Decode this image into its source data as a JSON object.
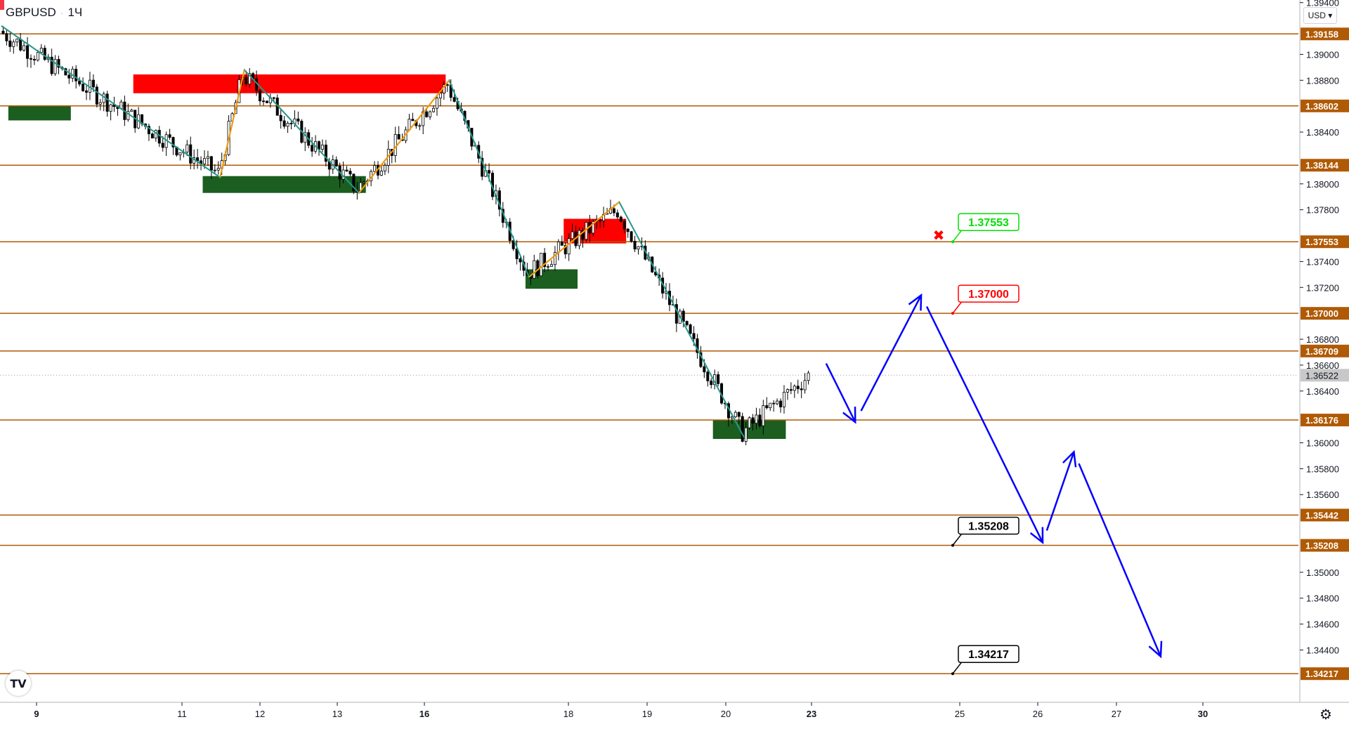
{
  "header": {
    "symbol": "GBPUSD",
    "interval": "1Ч",
    "separator": "·"
  },
  "price_scale": {
    "currency_button": "USD ▾"
  },
  "logo": {
    "text": "TV"
  },
  "icons": {
    "settings": "gear-icon",
    "target_missed": "cross-icon"
  },
  "colors": {
    "level_line": "#b05a05",
    "bull_candle": "#ffffff",
    "bear_candle": "#000000",
    "supply_zone": "#ff0000",
    "demand_zone": "#1b5e20",
    "zigzag_teal": "#26968c",
    "zigzag_orange": "#ff9800",
    "forecast": "#0000ff",
    "current_price_tag": "#c8c8c8"
  },
  "chart_data": {
    "type": "candlestick",
    "symbol": "GBPUSD",
    "timeframe": "1H",
    "x_ticks": [
      "9",
      "11",
      "12",
      "13",
      "16",
      "18",
      "19",
      "20",
      "23",
      "25",
      "26",
      "27",
      "30"
    ],
    "y_ticks": [
      "1.39400",
      "1.39000",
      "1.38800",
      "1.38400",
      "1.38000",
      "1.37800",
      "1.37400",
      "1.37200",
      "1.36800",
      "1.36600",
      "1.36400",
      "1.36000",
      "1.35800",
      "1.35600",
      "1.35000",
      "1.34800",
      "1.34600",
      "1.34400"
    ],
    "y_range": [
      1.3405,
      1.3942
    ],
    "current_price": 1.36522,
    "levels": [
      1.39158,
      1.38602,
      1.38144,
      1.37553,
      1.37,
      1.36709,
      1.36176,
      1.35442,
      1.35208,
      1.34217
    ],
    "level_labels": [
      "1.39158",
      "1.38602",
      "1.38144",
      "1.37553",
      "1.37000",
      "1.36709",
      "1.36176",
      "1.35442",
      "1.35208",
      "1.34217"
    ],
    "current_price_label": "1.36522",
    "targets": [
      {
        "label": "1.37553",
        "status": "missed",
        "color": "#00e000"
      },
      {
        "label": "1.37000",
        "status": "active",
        "color": "#ff0000"
      },
      {
        "label": "1.35208",
        "status": "active",
        "color": "#000000"
      },
      {
        "label": "1.34217",
        "status": "active",
        "color": "#000000"
      }
    ],
    "supply_zones": [
      {
        "from_bar": 38,
        "to_bar": 128,
        "top": 1.38845,
        "bottom": 1.387
      },
      {
        "from_bar": 162,
        "to_bar": 180,
        "top": 1.3773,
        "bottom": 1.3754
      }
    ],
    "demand_zones": [
      {
        "from_bar": 2,
        "to_bar": 20,
        "top": 1.38602,
        "bottom": 1.3849
      },
      {
        "from_bar": 58,
        "to_bar": 105,
        "top": 1.3806,
        "bottom": 1.3793
      },
      {
        "from_bar": 151,
        "to_bar": 166,
        "top": 1.3734,
        "bottom": 1.3719
      },
      {
        "from_bar": 205,
        "to_bar": 226,
        "top": 1.36176,
        "bottom": 1.3603
      }
    ],
    "zigzag_teal": [
      [
        0,
        1.3922
      ],
      [
        63,
        1.3805
      ],
      [
        70,
        1.3888
      ],
      [
        103,
        1.3793
      ],
      [
        129,
        1.388
      ],
      [
        152,
        1.3728
      ],
      [
        178,
        1.3786
      ],
      [
        214,
        1.3604
      ]
    ],
    "zigzag_orange": [
      [
        63,
        1.3805
      ],
      [
        70,
        1.3888
      ],
      [
        103,
        1.3793
      ],
      [
        129,
        1.388
      ],
      [
        152,
        1.3728
      ],
      [
        178,
        1.3786
      ]
    ],
    "forecast_path": [
      [
        236,
        1.367
      ],
      [
        246,
        1.3616
      ],
      [
        265,
        1.3714
      ],
      [
        300,
        1.3523
      ],
      [
        309,
        1.3593
      ],
      [
        334,
        1.3435
      ]
    ],
    "series": [
      {
        "segment": 1,
        "from_bar": 0,
        "to_bar": 63,
        "start": 1.3918,
        "end": 1.3808
      },
      {
        "segment": 2,
        "from_bar": 63,
        "to_bar": 70,
        "start": 1.3808,
        "end": 1.3884
      },
      {
        "segment": 3,
        "from_bar": 70,
        "to_bar": 103,
        "start": 1.3884,
        "end": 1.3796
      },
      {
        "segment": 4,
        "from_bar": 103,
        "to_bar": 129,
        "start": 1.3796,
        "end": 1.3877
      },
      {
        "segment": 5,
        "from_bar": 129,
        "to_bar": 152,
        "start": 1.3877,
        "end": 1.3731
      },
      {
        "segment": 6,
        "from_bar": 152,
        "to_bar": 178,
        "start": 1.3731,
        "end": 1.378
      },
      {
        "segment": 7,
        "from_bar": 178,
        "to_bar": 214,
        "start": 1.378,
        "end": 1.3608
      },
      {
        "segment": 8,
        "from_bar": 214,
        "to_bar": 233,
        "start": 1.3608,
        "end": 1.3652
      }
    ]
  }
}
